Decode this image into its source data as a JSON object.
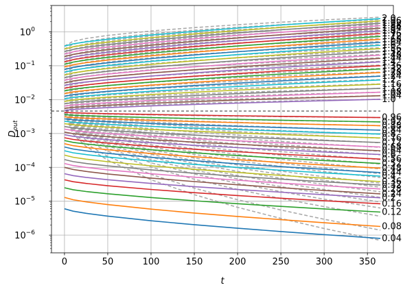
{
  "chart_data": {
    "type": "line",
    "title": "",
    "xlabel": "t",
    "ylabel": "D_out",
    "xlim": [
      -15,
      380
    ],
    "ylim": [
      3e-07,
      6
    ],
    "y_scale": "log",
    "grid": true,
    "x_ticks": [
      {
        "value": 0,
        "label": "0"
      },
      {
        "value": 50,
        "label": "50"
      },
      {
        "value": 100,
        "label": "100"
      },
      {
        "value": 150,
        "label": "150"
      },
      {
        "value": 200,
        "label": "200"
      },
      {
        "value": 250,
        "label": "250"
      },
      {
        "value": 300,
        "label": "300"
      },
      {
        "value": 350,
        "label": "350"
      }
    ],
    "y_ticks": [
      {
        "value": 1e-06,
        "base": "10",
        "exp": "−6"
      },
      {
        "value": 1e-05,
        "base": "10",
        "exp": "−5"
      },
      {
        "value": 0.0001,
        "base": "10",
        "exp": "−4"
      },
      {
        "value": 0.001,
        "base": "10",
        "exp": "−3"
      },
      {
        "value": 0.01,
        "base": "10",
        "exp": "−2"
      },
      {
        "value": 0.1,
        "base": "10",
        "exp": "−1"
      },
      {
        "value": 1,
        "base": "10",
        "exp": "0"
      }
    ],
    "reference_line": {
      "y": 0.0046,
      "style": "dashed",
      "color": "#444444"
    },
    "curves_t": [
      0,
      10,
      25,
      50,
      100,
      150,
      200,
      250,
      300,
      365
    ],
    "reference_curve_color": "#aaaaaa",
    "palette": [
      "#1f77b4",
      "#ff7f0e",
      "#2ca02c",
      "#d62728",
      "#9467bd",
      "#8c564b",
      "#e377c2",
      "#7f7f7f",
      "#bcbd22",
      "#17becf"
    ],
    "series": [
      {
        "label": "0.04",
        "start": 6e-06,
        "end": 8e-07,
        "ref_start": 0.004,
        "ref_end": 7e-07
      },
      {
        "label": "0.08",
        "start": 1.3e-05,
        "end": 1.8e-06,
        "ref_start": 0.004,
        "ref_end": 1.4e-06
      },
      {
        "label": "0.12",
        "start": 2.5e-05,
        "end": 4.8e-06,
        "ref_start": 0.004,
        "ref_end": 3.6e-06
      },
      {
        "label": "0.16",
        "start": 4.3e-05,
        "end": 8.4e-06,
        "ref_start": 0.004,
        "ref_end": 6.3e-06
      },
      {
        "label": "0.2",
        "start": 6.5e-05,
        "end": 1.26e-05,
        "ref_start": 0.004,
        "ref_end": 9.5e-06
      },
      {
        "label": "0.24",
        "start": 0.0001,
        "end": 1.65e-05,
        "ref_start": 0.004,
        "ref_end": 1.3e-05
      },
      {
        "label": "0.28",
        "start": 0.00013,
        "end": 2.3e-05,
        "ref_start": 0.004,
        "ref_end": 1.9e-05
      },
      {
        "label": "0.32",
        "start": 0.00017,
        "end": 3e-05,
        "ref_start": 0.004,
        "ref_end": 2.6e-05
      },
      {
        "label": "0.36",
        "start": 0.00023,
        "end": 3.8e-05,
        "ref_start": 0.004,
        "ref_end": 3.4e-05
      },
      {
        "label": "0.4",
        "start": 0.00031,
        "end": 5.5e-05,
        "ref_start": 0.004,
        "ref_end": 5e-05
      },
      {
        "label": "0.44",
        "start": 0.0004,
        "end": 7e-05,
        "ref_start": 0.004,
        "ref_end": 6.5e-05
      },
      {
        "label": "0.48",
        "start": 0.0005,
        "end": 9.5e-05,
        "ref_start": 0.004,
        "ref_end": 9e-05
      },
      {
        "label": "0.52",
        "start": 0.00062,
        "end": 0.00013,
        "ref_start": 0.004,
        "ref_end": 0.000125
      },
      {
        "label": "0.56",
        "start": 0.00075,
        "end": 0.000175,
        "ref_start": 0.004,
        "ref_end": 0.00017
      },
      {
        "label": "0.6",
        "start": 0.00092,
        "end": 0.00024,
        "ref_start": 0.004,
        "ref_end": 0.000235
      },
      {
        "label": "0.64",
        "start": 0.0011,
        "end": 0.00031,
        "ref_start": 0.004,
        "ref_end": 0.0003
      },
      {
        "label": "0.68",
        "start": 0.00135,
        "end": 0.0004,
        "ref_start": 0.004,
        "ref_end": 0.00039
      },
      {
        "label": "0.72",
        "start": 0.0016,
        "end": 0.00054,
        "ref_start": 0.004,
        "ref_end": 0.00053
      },
      {
        "label": "0.76",
        "start": 0.00195,
        "end": 0.00074,
        "ref_start": 0.004,
        "ref_end": 0.00073
      },
      {
        "label": "0.8",
        "start": 0.0023,
        "end": 0.00096,
        "ref_start": 0.004,
        "ref_end": 0.00095
      },
      {
        "label": "0.84",
        "start": 0.0027,
        "end": 0.00125,
        "ref_start": 0.004,
        "ref_end": 0.00125
      },
      {
        "label": "0.88",
        "start": 0.0031,
        "end": 0.0017,
        "ref_start": 0.004,
        "ref_end": 0.0017
      },
      {
        "label": "0.92",
        "start": 0.0036,
        "end": 0.0022,
        "ref_start": 0.004,
        "ref_end": 0.0022
      },
      {
        "label": "0.96",
        "start": 0.0042,
        "end": 0.00295,
        "ref_start": 0.0043,
        "ref_end": 0.00295
      },
      {
        "label": "1.0",
        "start": 0.0048,
        "end": 0.0102,
        "ref_start": 0.0048,
        "ref_end": 0.0102
      },
      {
        "label": "1.04",
        "start": 0.0055,
        "end": 0.013,
        "ref_start": 0.0055,
        "ref_end": 0.013
      },
      {
        "label": "1.08",
        "start": 0.0064,
        "end": 0.0165,
        "ref_start": 0.0064,
        "ref_end": 0.0165
      },
      {
        "label": "1.12",
        "start": 0.0075,
        "end": 0.0215,
        "ref_start": 0.0075,
        "ref_end": 0.0215
      },
      {
        "label": "1.16",
        "start": 0.0088,
        "end": 0.0285,
        "ref_start": 0.0088,
        "ref_end": 0.029
      },
      {
        "label": "1.2",
        "start": 0.0105,
        "end": 0.038,
        "ref_start": 0.0105,
        "ref_end": 0.039
      },
      {
        "label": "1.24",
        "start": 0.0125,
        "end": 0.049,
        "ref_start": 0.0125,
        "ref_end": 0.05
      },
      {
        "label": "1.28",
        "start": 0.015,
        "end": 0.063,
        "ref_start": 0.015,
        "ref_end": 0.065
      },
      {
        "label": "1.32",
        "start": 0.018,
        "end": 0.08,
        "ref_start": 0.018,
        "ref_end": 0.083
      },
      {
        "label": "1.36",
        "start": 0.0215,
        "end": 0.1,
        "ref_start": 0.0215,
        "ref_end": 0.105
      },
      {
        "label": "1.4",
        "start": 0.026,
        "end": 0.13,
        "ref_start": 0.026,
        "ref_end": 0.135
      },
      {
        "label": "1.44",
        "start": 0.031,
        "end": 0.165,
        "ref_start": 0.031,
        "ref_end": 0.172
      },
      {
        "label": "1.48",
        "start": 0.037,
        "end": 0.205,
        "ref_start": 0.037,
        "ref_end": 0.215
      },
      {
        "label": "1.52",
        "start": 0.044,
        "end": 0.26,
        "ref_start": 0.044,
        "ref_end": 0.275
      },
      {
        "label": "1.56",
        "start": 0.053,
        "end": 0.32,
        "ref_start": 0.053,
        "ref_end": 0.34
      },
      {
        "label": "1.6",
        "start": 0.064,
        "end": 0.4,
        "ref_start": 0.064,
        "ref_end": 0.425
      },
      {
        "label": "1.64",
        "start": 0.077,
        "end": 0.49,
        "ref_start": 0.077,
        "ref_end": 0.52
      },
      {
        "label": "1.68",
        "start": 0.092,
        "end": 0.6,
        "ref_start": 0.092,
        "ref_end": 0.64
      },
      {
        "label": "1.72",
        "start": 0.11,
        "end": 0.73,
        "ref_start": 0.11,
        "ref_end": 0.78
      },
      {
        "label": "1.76",
        "start": 0.13,
        "end": 0.89,
        "ref_start": 0.13,
        "ref_end": 0.95
      },
      {
        "label": "1.8",
        "start": 0.155,
        "end": 1.07,
        "ref_start": 0.155,
        "ref_end": 1.15
      },
      {
        "label": "1.84",
        "start": 0.185,
        "end": 1.28,
        "ref_start": 0.185,
        "ref_end": 1.38
      },
      {
        "label": "1.88",
        "start": 0.22,
        "end": 1.52,
        "ref_start": 0.22,
        "ref_end": 1.64
      },
      {
        "label": "1.92",
        "start": 0.26,
        "end": 1.8,
        "ref_start": 0.26,
        "ref_end": 1.95
      },
      {
        "label": "1.96",
        "start": 0.31,
        "end": 2.1,
        "ref_start": 0.31,
        "ref_end": 2.3
      },
      {
        "label": "2.0",
        "start": 0.38,
        "end": 2.45,
        "ref_start": 0.38,
        "ref_end": 2.7
      }
    ]
  }
}
